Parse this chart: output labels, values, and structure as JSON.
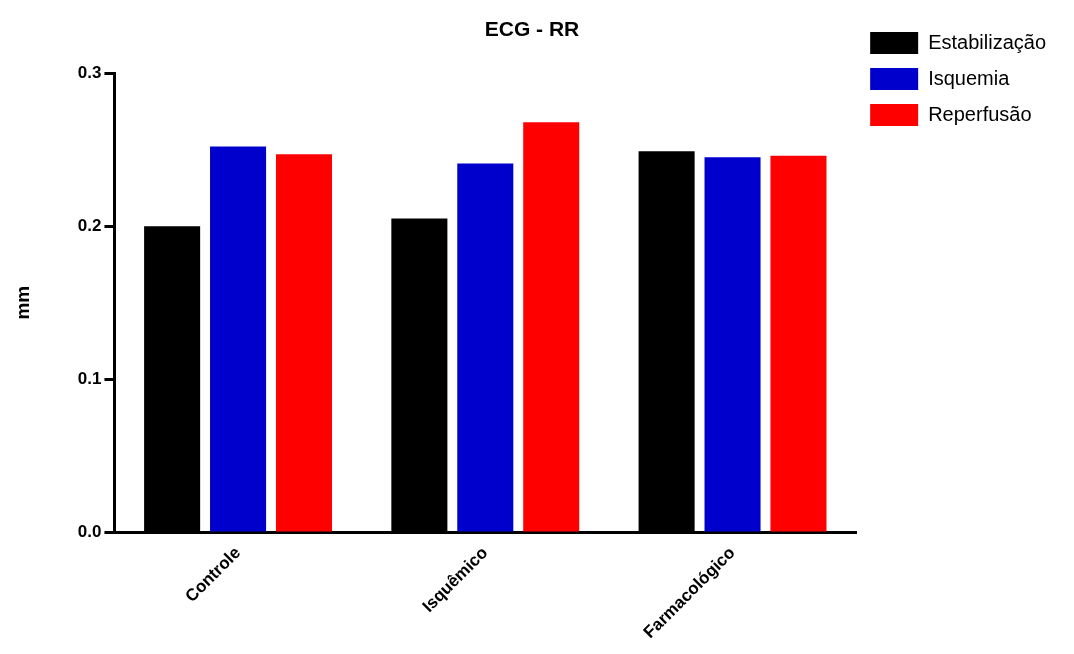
{
  "chart_data": {
    "type": "bar",
    "title": "ECG - RR",
    "ylabel": "mm",
    "categories": [
      "Controle",
      "Isquêmico",
      "Farmacológico"
    ],
    "series": [
      {
        "name": "Estabilização",
        "color": "#000000",
        "values": [
          0.2,
          0.205,
          0.249
        ]
      },
      {
        "name": "Isquemia",
        "color": "#0000cc",
        "values": [
          0.252,
          0.241,
          0.245
        ]
      },
      {
        "name": "Reperfusão",
        "color": "#ff0000",
        "values": [
          0.247,
          0.268,
          0.246
        ]
      }
    ],
    "ylim": [
      0,
      0.3
    ],
    "yticks": [
      {
        "value": 0,
        "label": "0.0"
      },
      0.1,
      0.2,
      0.3
    ],
    "grid": false,
    "legend": "top right"
  }
}
